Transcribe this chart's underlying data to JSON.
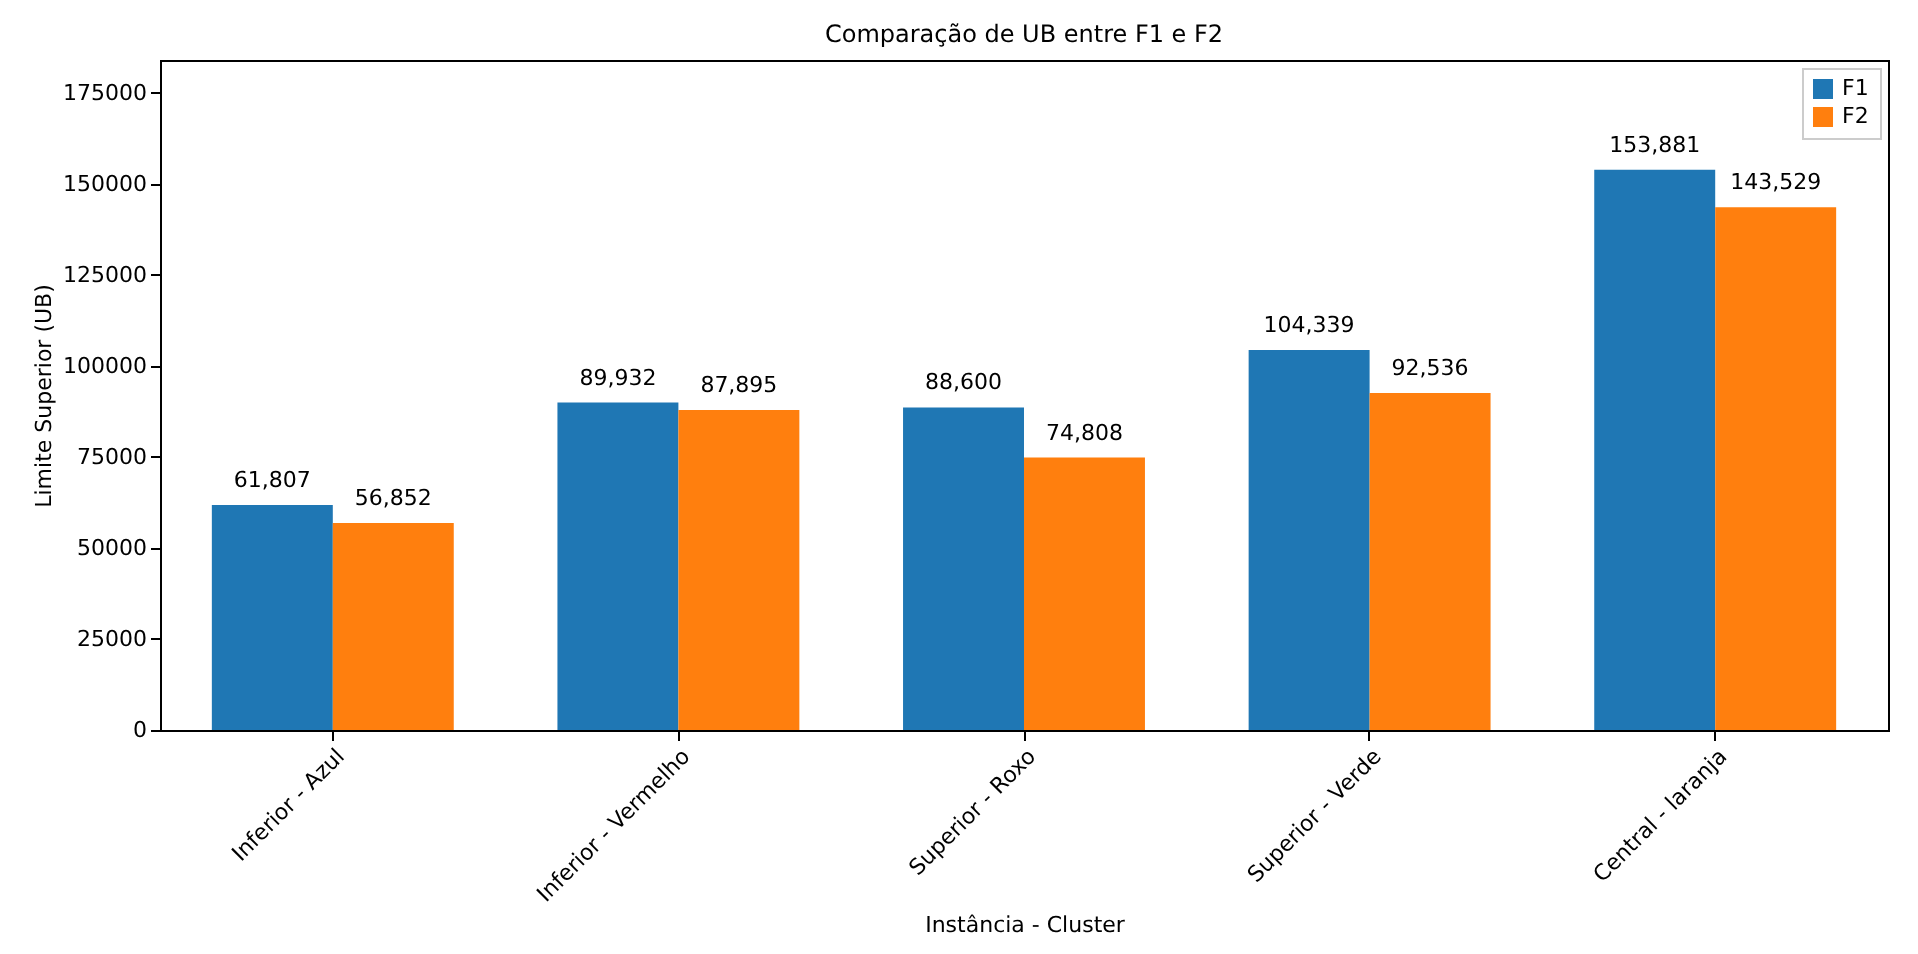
{
  "chart_data": {
    "type": "bar",
    "title": "Comparação de UB entre F1 e F2",
    "xlabel": "Instância - Cluster",
    "ylabel": "Limite Superior (UB)",
    "categories": [
      "Inferior - Azul",
      "Inferior - Vermelho",
      "Superior - Roxo",
      "Superior - Verde",
      "Central - laranja"
    ],
    "series": [
      {
        "name": "F1",
        "color": "#1f77b4",
        "values": [
          61807,
          89932,
          88600,
          104339,
          153881
        ],
        "value_labels": [
          "61,807",
          "89,932",
          "88,600",
          "104,339",
          "153,881"
        ]
      },
      {
        "name": "F2",
        "color": "#ff7f0e",
        "values": [
          56852,
          87895,
          74808,
          92536,
          143529
        ],
        "value_labels": [
          "56,852",
          "87,895",
          "74,808",
          "92,536",
          "143,529"
        ]
      }
    ],
    "ylim": [
      0,
      184000
    ],
    "yticks": [
      0,
      25000,
      50000,
      75000,
      100000,
      125000,
      150000,
      175000
    ],
    "grid": false,
    "legend": "top right"
  }
}
